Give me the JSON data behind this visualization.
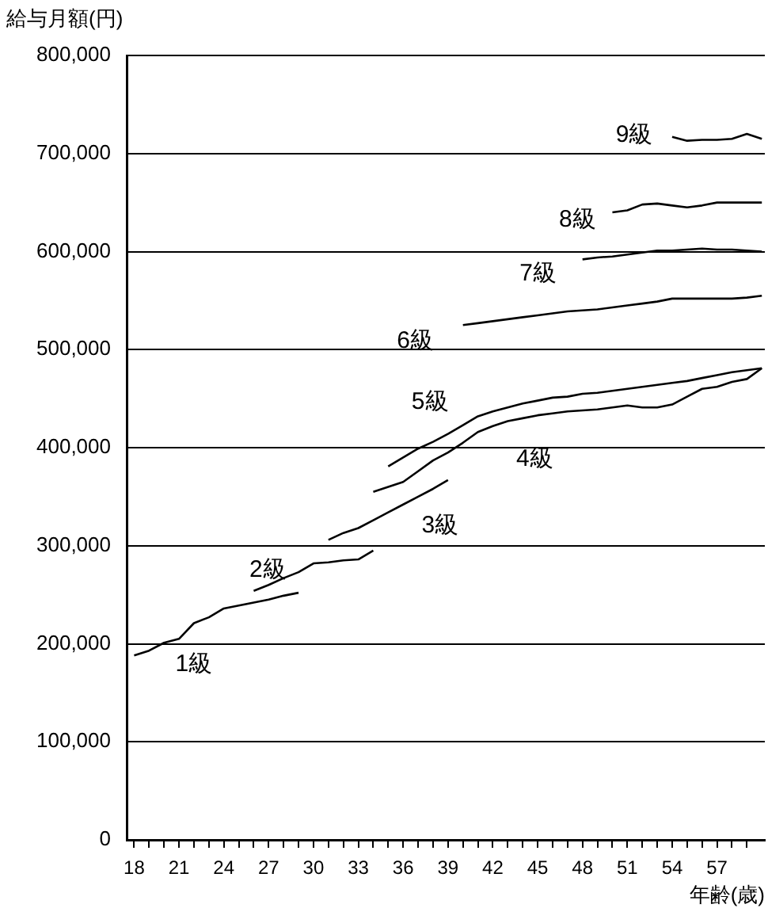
{
  "chart_data": {
    "type": "line",
    "xlabel": "年齢(歳)",
    "ylabel": "給与月額(円)",
    "xlim": [
      17.5,
      60.2
    ],
    "ylim": [
      0,
      800000
    ],
    "xticks": [
      18,
      {
        "value": 19,
        "label": null
      },
      {
        "value": 20,
        "label": null
      },
      21,
      {
        "value": 22,
        "label": null
      },
      {
        "value": 23,
        "label": null
      },
      24,
      {
        "value": 25,
        "label": null
      },
      {
        "value": 26,
        "label": null
      },
      27,
      {
        "value": 28,
        "label": null
      },
      {
        "value": 29,
        "label": null
      },
      30,
      {
        "value": 31,
        "label": null
      },
      {
        "value": 32,
        "label": null
      },
      33,
      {
        "value": 34,
        "label": null
      },
      {
        "value": 35,
        "label": null
      },
      36,
      {
        "value": 37,
        "label": null
      },
      {
        "value": 38,
        "label": null
      },
      39,
      {
        "value": 40,
        "label": null
      },
      {
        "value": 41,
        "label": null
      },
      42,
      {
        "value": 43,
        "label": null
      },
      {
        "value": 44,
        "label": null
      },
      45,
      {
        "value": 46,
        "label": null
      },
      {
        "value": 47,
        "label": null
      },
      48,
      {
        "value": 49,
        "label": null
      },
      {
        "value": 50,
        "label": null
      },
      51,
      {
        "value": 52,
        "label": null
      },
      {
        "value": 53,
        "label": null
      },
      54,
      {
        "value": 55,
        "label": null
      },
      {
        "value": 56,
        "label": null
      },
      57,
      {
        "value": 58,
        "label": null
      },
      {
        "value": 59,
        "label": null
      }
    ],
    "yticks": [
      {
        "value": 0,
        "label": "0"
      },
      {
        "value": 100000,
        "label": "100,000"
      },
      {
        "value": 200000,
        "label": "200,000"
      },
      {
        "value": 300000,
        "label": "300,000"
      },
      {
        "value": 400000,
        "label": "400,000"
      },
      {
        "value": 500000,
        "label": "500,000"
      },
      {
        "value": 600000,
        "label": "600,000"
      },
      {
        "value": 700000,
        "label": "700,000"
      },
      {
        "value": 800000,
        "label": "800,000"
      }
    ],
    "grid": "y",
    "legend": false,
    "marker": "none",
    "line_style": "solid",
    "series": [
      {
        "name": "1級",
        "color": "#000000",
        "x": [
          18,
          19,
          20,
          21,
          22,
          23,
          24,
          25,
          26,
          27,
          28,
          29
        ],
        "values": [
          188000,
          193000,
          201000,
          205000,
          221000,
          227000,
          236000,
          239000,
          242000,
          245000,
          249000,
          252000
        ]
      },
      {
        "name": "2級",
        "color": "#000000",
        "x": [
          26,
          27,
          28,
          29,
          30,
          31,
          32,
          33,
          34
        ],
        "values": [
          254000,
          260000,
          267000,
          273000,
          282000,
          283000,
          285000,
          286000,
          295000
        ]
      },
      {
        "name": "3級",
        "color": "#000000",
        "x": [
          31,
          32,
          33,
          34,
          35,
          36,
          37,
          38,
          39
        ],
        "values": [
          306000,
          313000,
          318000,
          326000,
          334000,
          342000,
          350000,
          358000,
          367000
        ]
      },
      {
        "name": "4級",
        "color": "#000000",
        "x": [
          34,
          35,
          36,
          37,
          38,
          39,
          40,
          41,
          42,
          43,
          44,
          45,
          46,
          47,
          48,
          49,
          50,
          51,
          52,
          53,
          54,
          55,
          56,
          57,
          58,
          59,
          60
        ],
        "values": [
          355000,
          360000,
          365000,
          376000,
          387000,
          395000,
          405000,
          416000,
          422000,
          427000,
          430000,
          433000,
          435000,
          437000,
          438000,
          439000,
          441000,
          443000,
          441000,
          441000,
          444000,
          452000,
          460000,
          462000,
          467000,
          470000,
          481000
        ]
      },
      {
        "name": "5級",
        "color": "#000000",
        "x": [
          35,
          36,
          37,
          38,
          39,
          40,
          41,
          42,
          43,
          44,
          45,
          46,
          47,
          48,
          49,
          50,
          51,
          52,
          53,
          54,
          55,
          56,
          57,
          58,
          59,
          60
        ],
        "values": [
          381000,
          390000,
          399000,
          406000,
          414000,
          423000,
          432000,
          437000,
          441000,
          445000,
          448000,
          451000,
          452000,
          455000,
          456000,
          458000,
          460000,
          462000,
          464000,
          466000,
          468000,
          471000,
          474000,
          477000,
          479000,
          481000
        ]
      },
      {
        "name": "6級",
        "color": "#000000",
        "x": [
          40,
          41,
          42,
          43,
          44,
          45,
          46,
          47,
          48,
          49,
          50,
          51,
          52,
          53,
          54,
          55,
          56,
          57,
          58,
          59,
          60
        ],
        "values": [
          525000,
          527000,
          529000,
          531000,
          533000,
          535000,
          537000,
          539000,
          540000,
          541000,
          543000,
          545000,
          547000,
          549000,
          552000,
          552000,
          552000,
          552000,
          552000,
          553000,
          555000
        ]
      },
      {
        "name": "7級",
        "color": "#000000",
        "x": [
          48,
          49,
          50,
          51,
          52,
          53,
          54,
          55,
          56,
          57,
          58,
          59,
          60
        ],
        "values": [
          592000,
          594000,
          595000,
          597000,
          599000,
          601000,
          601000,
          602000,
          603000,
          602000,
          602000,
          601000,
          600000
        ]
      },
      {
        "name": "8級",
        "color": "#000000",
        "x": [
          50,
          51,
          52,
          53,
          54,
          55,
          56,
          57,
          58,
          59,
          60
        ],
        "values": [
          640000,
          642000,
          648000,
          649000,
          647000,
          645000,
          647000,
          650000,
          650000,
          650000,
          650000
        ]
      },
      {
        "name": "9級",
        "color": "#000000",
        "x": [
          54,
          55,
          56,
          57,
          58,
          59,
          60
        ],
        "values": [
          717000,
          713000,
          714000,
          714000,
          715000,
          720000,
          715000
        ]
      }
    ]
  }
}
